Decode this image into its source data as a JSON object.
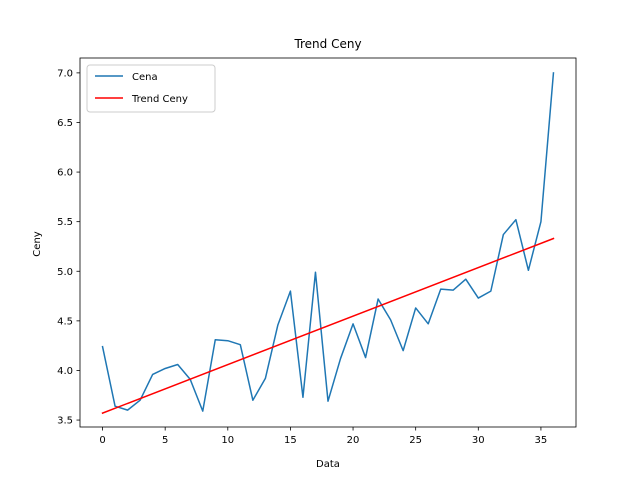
{
  "chart_data": {
    "type": "line",
    "title": "Trend Ceny",
    "xlabel": "Data",
    "ylabel": "Ceny",
    "xlim": [
      -1.8,
      37.8
    ],
    "ylim": [
      3.43,
      7.15
    ],
    "xticks": [
      0,
      5,
      10,
      15,
      20,
      25,
      30,
      35
    ],
    "yticks": [
      3.5,
      4.0,
      4.5,
      5.0,
      5.5,
      6.0,
      6.5,
      7.0
    ],
    "xtick_labels": [
      "0",
      "5",
      "10",
      "15",
      "20",
      "25",
      "30",
      "35"
    ],
    "ytick_labels": [
      "3.5",
      "4.0",
      "4.5",
      "5.0",
      "5.5",
      "6.0",
      "6.5",
      "7.0"
    ],
    "grid": false,
    "legend_position": "upper-left",
    "series": [
      {
        "name": "Cena",
        "color": "#1f77b4",
        "x": [
          0,
          1,
          2,
          3,
          4,
          5,
          6,
          7,
          8,
          9,
          10,
          11,
          12,
          13,
          14,
          15,
          16,
          17,
          18,
          19,
          20,
          21,
          22,
          23,
          24,
          25,
          26,
          27,
          28,
          29,
          30,
          31,
          32,
          33,
          34,
          35,
          36
        ],
        "values": [
          4.24,
          3.64,
          3.6,
          3.7,
          3.96,
          4.02,
          4.06,
          3.91,
          3.59,
          4.31,
          4.3,
          4.26,
          3.7,
          3.92,
          4.46,
          4.8,
          3.73,
          4.99,
          3.69,
          4.12,
          4.47,
          4.13,
          4.72,
          4.51,
          4.2,
          4.63,
          4.47,
          4.82,
          4.81,
          4.92,
          4.73,
          4.8,
          5.37,
          5.52,
          5.01,
          5.5,
          7.0
        ]
      },
      {
        "name": "Trend Ceny",
        "color": "#ff0000",
        "x": [
          0,
          36
        ],
        "values": [
          3.57,
          5.33
        ]
      }
    ]
  }
}
